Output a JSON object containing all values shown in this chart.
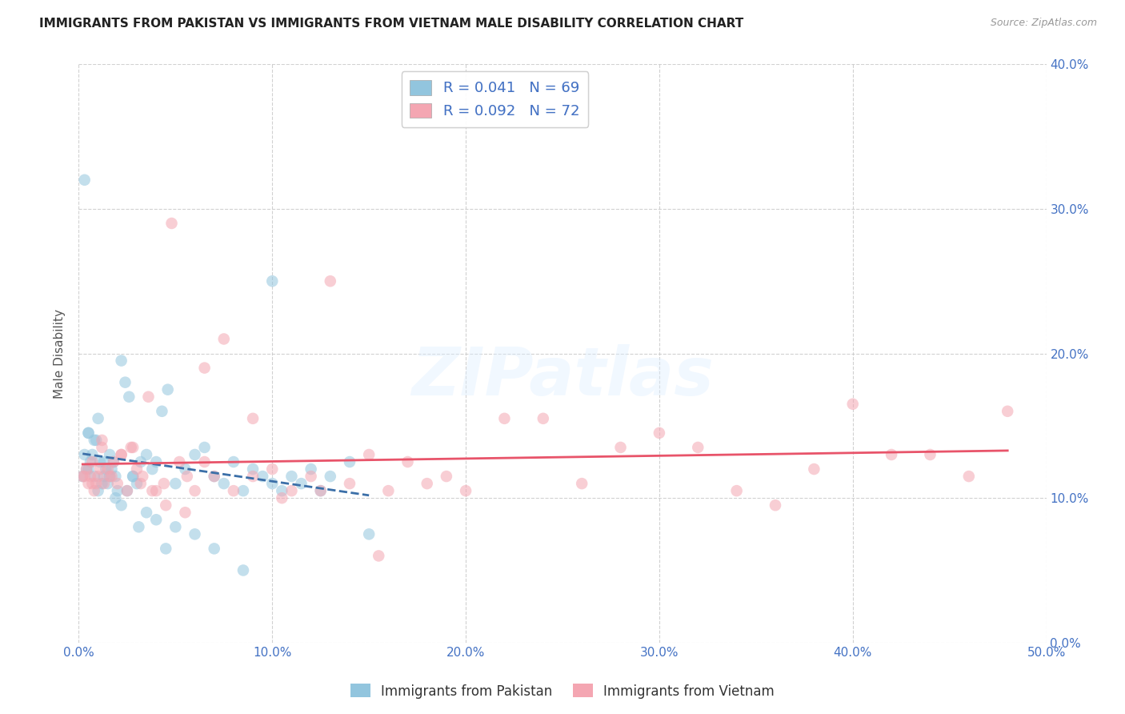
{
  "title": "IMMIGRANTS FROM PAKISTAN VS IMMIGRANTS FROM VIETNAM MALE DISABILITY CORRELATION CHART",
  "source": "Source: ZipAtlas.com",
  "ylabel": "Male Disability",
  "xlim": [
    0.0,
    0.5
  ],
  "ylim": [
    0.0,
    0.4
  ],
  "xticks": [
    0.0,
    0.1,
    0.2,
    0.3,
    0.4,
    0.5
  ],
  "yticks": [
    0.0,
    0.1,
    0.2,
    0.3,
    0.4
  ],
  "ytick_labels_right": [
    "0.0%",
    "10.0%",
    "20.0%",
    "30.0%",
    "40.0%"
  ],
  "xtick_labels": [
    "0.0%",
    "10.0%",
    "20.0%",
    "30.0%",
    "40.0%",
    "50.0%"
  ],
  "pakistan_color": "#92C5DE",
  "vietnam_color": "#F4A6B2",
  "pakistan_R": 0.041,
  "pakistan_N": 69,
  "vietnam_R": 0.092,
  "vietnam_N": 72,
  "pakistan_line_color": "#3B6FA8",
  "vietnam_line_color": "#E8546A",
  "watermark": "ZIPatlas",
  "background_color": "#FFFFFF",
  "grid_color": "#CCCCCC",
  "pakistan_x": [
    0.002,
    0.003,
    0.004,
    0.005,
    0.005,
    0.006,
    0.007,
    0.008,
    0.009,
    0.01,
    0.011,
    0.012,
    0.013,
    0.014,
    0.015,
    0.016,
    0.017,
    0.018,
    0.019,
    0.02,
    0.022,
    0.024,
    0.026,
    0.028,
    0.03,
    0.032,
    0.035,
    0.038,
    0.04,
    0.043,
    0.046,
    0.05,
    0.055,
    0.06,
    0.065,
    0.07,
    0.075,
    0.08,
    0.085,
    0.09,
    0.095,
    0.1,
    0.105,
    0.11,
    0.115,
    0.12,
    0.125,
    0.13,
    0.14,
    0.15,
    0.003,
    0.005,
    0.008,
    0.01,
    0.013,
    0.016,
    0.019,
    0.022,
    0.025,
    0.028,
    0.031,
    0.035,
    0.04,
    0.045,
    0.05,
    0.06,
    0.07,
    0.085,
    0.1
  ],
  "pakistan_y": [
    0.115,
    0.13,
    0.12,
    0.12,
    0.145,
    0.125,
    0.13,
    0.115,
    0.14,
    0.105,
    0.125,
    0.11,
    0.115,
    0.12,
    0.11,
    0.13,
    0.12,
    0.125,
    0.115,
    0.105,
    0.195,
    0.18,
    0.17,
    0.115,
    0.11,
    0.125,
    0.13,
    0.12,
    0.125,
    0.16,
    0.175,
    0.11,
    0.12,
    0.13,
    0.135,
    0.115,
    0.11,
    0.125,
    0.105,
    0.12,
    0.115,
    0.11,
    0.105,
    0.115,
    0.11,
    0.12,
    0.105,
    0.115,
    0.125,
    0.075,
    0.32,
    0.145,
    0.14,
    0.155,
    0.125,
    0.115,
    0.1,
    0.095,
    0.105,
    0.115,
    0.08,
    0.09,
    0.085,
    0.065,
    0.08,
    0.075,
    0.065,
    0.05,
    0.25
  ],
  "vietnam_x": [
    0.002,
    0.004,
    0.005,
    0.006,
    0.007,
    0.008,
    0.009,
    0.01,
    0.011,
    0.012,
    0.013,
    0.015,
    0.016,
    0.018,
    0.02,
    0.022,
    0.025,
    0.028,
    0.03,
    0.033,
    0.036,
    0.04,
    0.044,
    0.048,
    0.052,
    0.056,
    0.06,
    0.065,
    0.07,
    0.08,
    0.09,
    0.1,
    0.11,
    0.12,
    0.13,
    0.14,
    0.15,
    0.16,
    0.17,
    0.18,
    0.19,
    0.2,
    0.22,
    0.24,
    0.26,
    0.28,
    0.3,
    0.32,
    0.34,
    0.36,
    0.38,
    0.4,
    0.42,
    0.44,
    0.46,
    0.003,
    0.007,
    0.012,
    0.017,
    0.022,
    0.027,
    0.032,
    0.038,
    0.045,
    0.055,
    0.065,
    0.075,
    0.09,
    0.105,
    0.125,
    0.155,
    0.48
  ],
  "vietnam_y": [
    0.115,
    0.12,
    0.11,
    0.115,
    0.125,
    0.105,
    0.11,
    0.115,
    0.12,
    0.135,
    0.11,
    0.12,
    0.115,
    0.125,
    0.11,
    0.13,
    0.105,
    0.135,
    0.12,
    0.115,
    0.17,
    0.105,
    0.11,
    0.29,
    0.125,
    0.115,
    0.105,
    0.125,
    0.115,
    0.105,
    0.115,
    0.12,
    0.105,
    0.115,
    0.25,
    0.11,
    0.13,
    0.105,
    0.125,
    0.11,
    0.115,
    0.105,
    0.155,
    0.155,
    0.11,
    0.135,
    0.145,
    0.135,
    0.105,
    0.095,
    0.12,
    0.165,
    0.13,
    0.13,
    0.115,
    0.115,
    0.11,
    0.14,
    0.115,
    0.13,
    0.135,
    0.11,
    0.105,
    0.095,
    0.09,
    0.19,
    0.21,
    0.155,
    0.1,
    0.105,
    0.06,
    0.16
  ]
}
